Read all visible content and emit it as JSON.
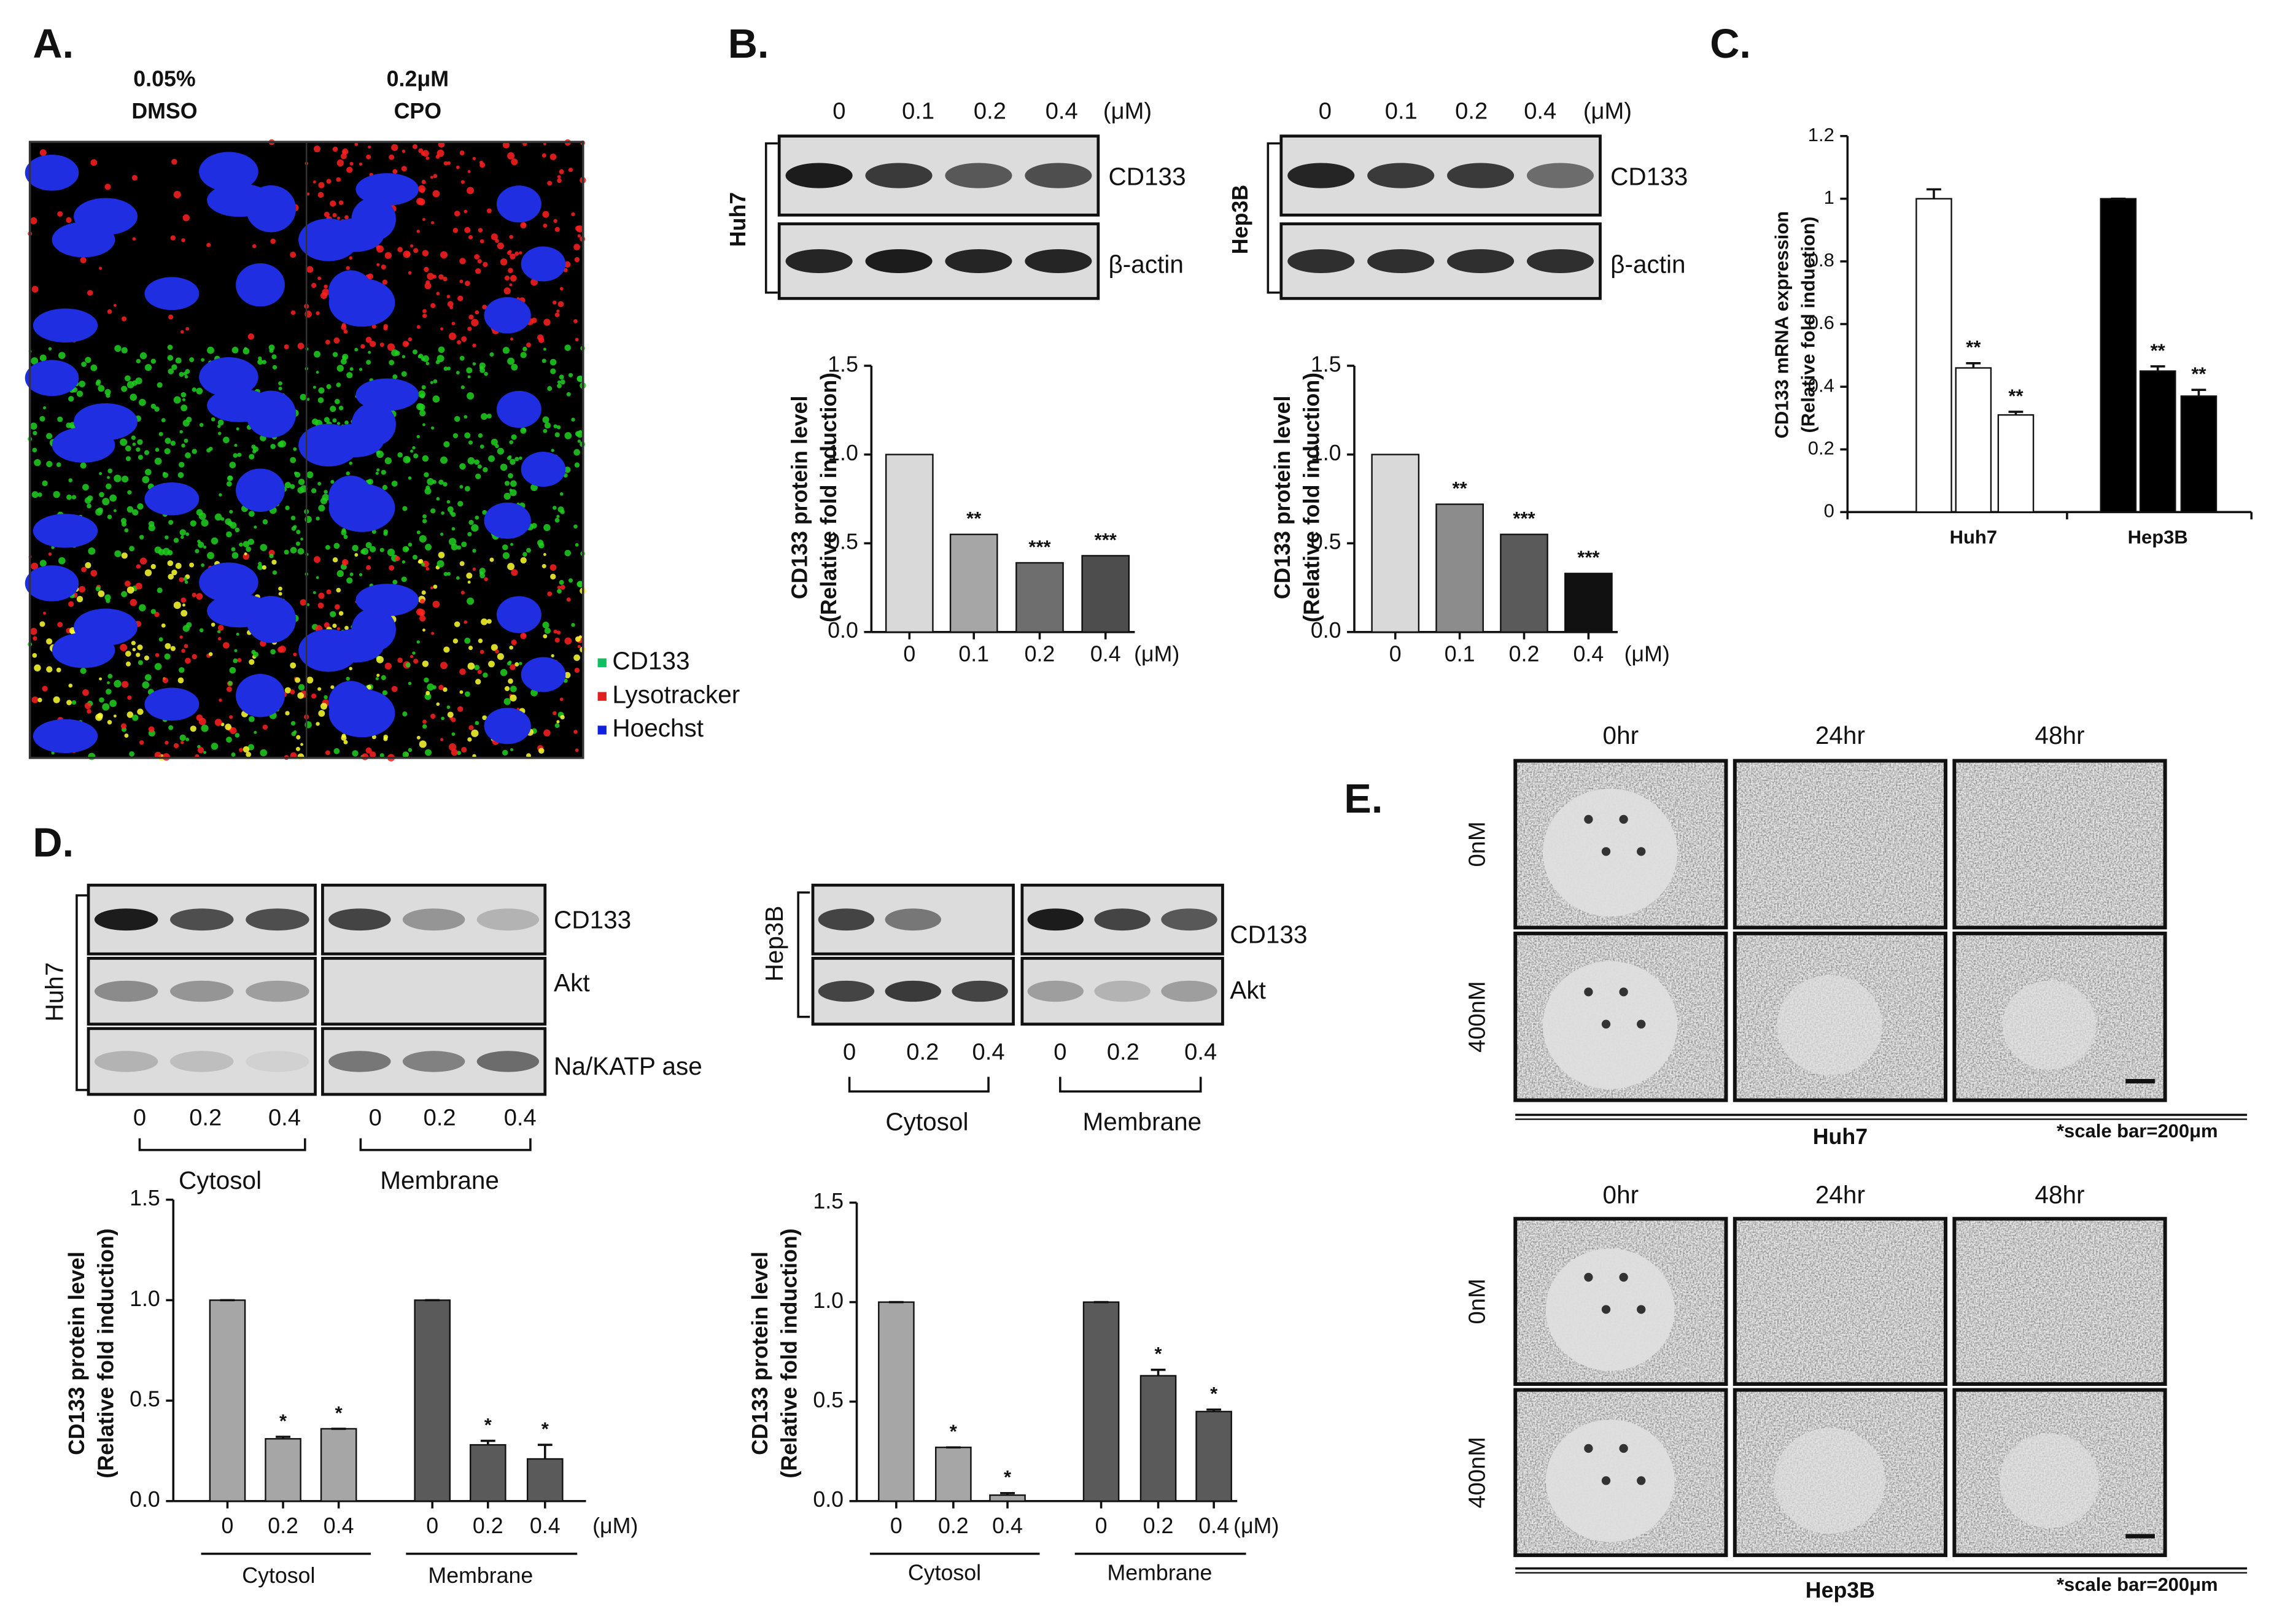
{
  "panel_labels": [
    "A.",
    "B.",
    "C.",
    "D.",
    "E."
  ],
  "panel_a": {
    "columns": [
      [
        "0.05%",
        "DMSO"
      ],
      [
        "0.2μM",
        "CPO"
      ]
    ],
    "legend": [
      "CD133",
      "Lysotracker",
      "Hoechst"
    ]
  },
  "panel_b_blots": [
    {
      "cell_line": "Huh7",
      "lanes": [
        "0",
        "0.1",
        "0.2",
        "0.4"
      ],
      "unit": "(μM)",
      "bands": [
        "CD133",
        "β-actin"
      ]
    },
    {
      "cell_line": "Hep3B",
      "lanes": [
        "0",
        "0.1",
        "0.2",
        "0.4"
      ],
      "unit": "(μM)",
      "bands": [
        "CD133",
        "β-actin"
      ]
    }
  ],
  "panel_d_blots": [
    {
      "cell_line": "Huh7",
      "lanes": [
        "0",
        "0.2",
        "0.4",
        "0",
        "0.2",
        "0.4"
      ],
      "fractions": [
        "Cytosol",
        "Membrane"
      ],
      "bands": [
        "CD133",
        "Akt",
        "Na/KATP ase"
      ]
    },
    {
      "cell_line": "Hep3B",
      "lanes": [
        "0",
        "0.2",
        "0.4",
        "0",
        "0.2",
        "0.4"
      ],
      "fractions": [
        "Cytosol",
        "Membrane"
      ],
      "bands": [
        "CD133",
        "Akt"
      ]
    }
  ],
  "panel_e": [
    {
      "columns": [
        "0hr",
        "24hr",
        "48hr"
      ],
      "rows": [
        "0nM",
        "400nM"
      ],
      "cell_line": "Huh7",
      "note": "*scale bar=200μm"
    },
    {
      "columns": [
        "0hr",
        "24hr",
        "48hr"
      ],
      "rows": [
        "0nM",
        "400nM"
      ],
      "cell_line": "Hep3B",
      "note": "*scale bar=200μm"
    }
  ],
  "chart_data": [
    {
      "type": "bar",
      "categories": [
        "0",
        "0.1",
        "0.2",
        "0.4"
      ],
      "unit": "(μM)",
      "values": [
        1.0,
        0.55,
        0.39,
        0.43
      ],
      "colors": [
        "#d9d9d9",
        "#a6a6a6",
        "#6e6e6e",
        "#4d4d4d"
      ],
      "significance": [
        null,
        "**",
        "***",
        "***"
      ],
      "ylabel": [
        "CD133 protein level",
        "(Relative fold induction)"
      ],
      "ylim": [
        0,
        1.5
      ],
      "yticks": [
        {
          "value": 0,
          "label": "0.0"
        },
        0.5,
        {
          "value": 1,
          "label": "1.0"
        },
        1.5
      ]
    },
    {
      "type": "bar",
      "categories": [
        "0",
        "0.1",
        "0.2",
        "0.4"
      ],
      "unit": "(μM)",
      "values": [
        1.0,
        0.72,
        0.55,
        0.33
      ],
      "colors": [
        "#d9d9d9",
        "#8c8c8c",
        "#5a5a5a",
        "#111111"
      ],
      "significance": [
        null,
        "**",
        "***",
        "***"
      ],
      "ylabel": [
        "CD133 protein level",
        "(Relative fold induction)"
      ],
      "ylim": [
        0,
        1.5
      ],
      "yticks": [
        {
          "value": 0,
          "label": "0.0"
        },
        0.5,
        {
          "value": 1,
          "label": "1.0"
        },
        1.5
      ]
    },
    {
      "type": "grouped_bar",
      "groups": [
        {
          "name": "Huh7",
          "color": "#ffffff",
          "values": [
            1.0,
            0.46,
            0.31
          ],
          "errors": [
            0.03,
            0.015,
            0.01
          ],
          "significance": [
            null,
            "**",
            "**"
          ]
        },
        {
          "name": "Hep3B",
          "color": "#000000",
          "values": [
            1.0,
            0.45,
            0.37
          ],
          "errors": [
            0,
            0.015,
            0.02
          ],
          "significance": [
            null,
            "**",
            "**"
          ]
        }
      ],
      "ylabel": [
        "CD133 mRNA expression",
        "(Relative fold induction)"
      ],
      "ylim": [
        0,
        1.2
      ],
      "yticks": [
        0,
        0.2,
        0.4,
        0.6,
        0.8,
        1,
        1.2
      ]
    },
    {
      "type": "grouped_bar",
      "categories": [
        "0",
        "0.2",
        "0.4"
      ],
      "unit": "(μM)",
      "groups": [
        {
          "name": "Cytosol",
          "color": "#a6a6a6",
          "values": [
            1.0,
            0.31,
            0.36
          ],
          "errors": [
            0,
            0.01,
            0
          ],
          "significance": [
            null,
            "*",
            "*"
          ]
        },
        {
          "name": "Membrane",
          "color": "#5a5a5a",
          "values": [
            1.0,
            0.28,
            0.21
          ],
          "errors": [
            0,
            0.02,
            0.07
          ],
          "significance": [
            null,
            "*",
            "*"
          ]
        }
      ],
      "ylabel": [
        "CD133 protein level",
        "(Relative fold induction)"
      ],
      "ylim": [
        0,
        1.5
      ],
      "yticks": [
        {
          "value": 0,
          "label": "0.0"
        },
        0.5,
        {
          "value": 1,
          "label": "1.0"
        },
        1.5
      ]
    },
    {
      "type": "grouped_bar",
      "categories": [
        "0",
        "0.2",
        "0.4"
      ],
      "unit": "(μM)",
      "groups": [
        {
          "name": "Cytosol",
          "color": "#a6a6a6",
          "values": [
            1.0,
            0.27,
            0.03
          ],
          "errors": [
            0,
            0,
            0.01
          ],
          "significance": [
            null,
            "*",
            "*"
          ]
        },
        {
          "name": "Membrane",
          "color": "#5a5a5a",
          "values": [
            1.0,
            0.63,
            0.45
          ],
          "errors": [
            0,
            0.03,
            0.01
          ],
          "significance": [
            null,
            "*",
            "*"
          ]
        }
      ],
      "ylabel": [
        "CD133 protein level",
        "(Relative fold induction)"
      ],
      "ylim": [
        0,
        1.5
      ],
      "yticks": [
        {
          "value": 0,
          "label": "0.0"
        },
        0.5,
        {
          "value": 1,
          "label": "1.0"
        },
        1.5
      ]
    }
  ]
}
